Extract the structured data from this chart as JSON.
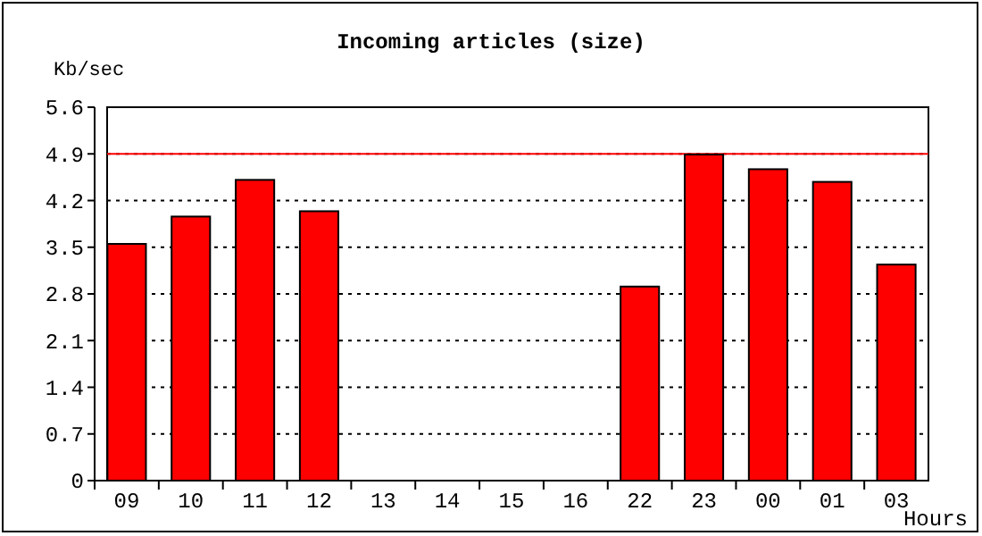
{
  "chart_data": {
    "type": "bar",
    "title": "Incoming articles (size)",
    "ylabel": "Kb/sec",
    "xlabel": "Hours",
    "categories": [
      "09",
      "10",
      "11",
      "12",
      "13",
      "14",
      "15",
      "16",
      "22",
      "23",
      "00",
      "01",
      "03"
    ],
    "values": [
      3.55,
      3.96,
      4.51,
      4.04,
      0,
      0,
      0,
      0,
      2.91,
      4.89,
      4.67,
      4.48,
      3.24
    ],
    "color": "#ff0000",
    "ylim": [
      0,
      5.6
    ],
    "yticks": [
      0,
      0.7,
      1.4,
      2.1,
      2.8,
      3.5,
      4.2,
      4.9,
      5.6
    ],
    "grid": "y",
    "line_style": "dotted",
    "ref_lines": [
      {
        "axis": "y",
        "value": 4.9,
        "color": "#ff0000"
      }
    ]
  }
}
